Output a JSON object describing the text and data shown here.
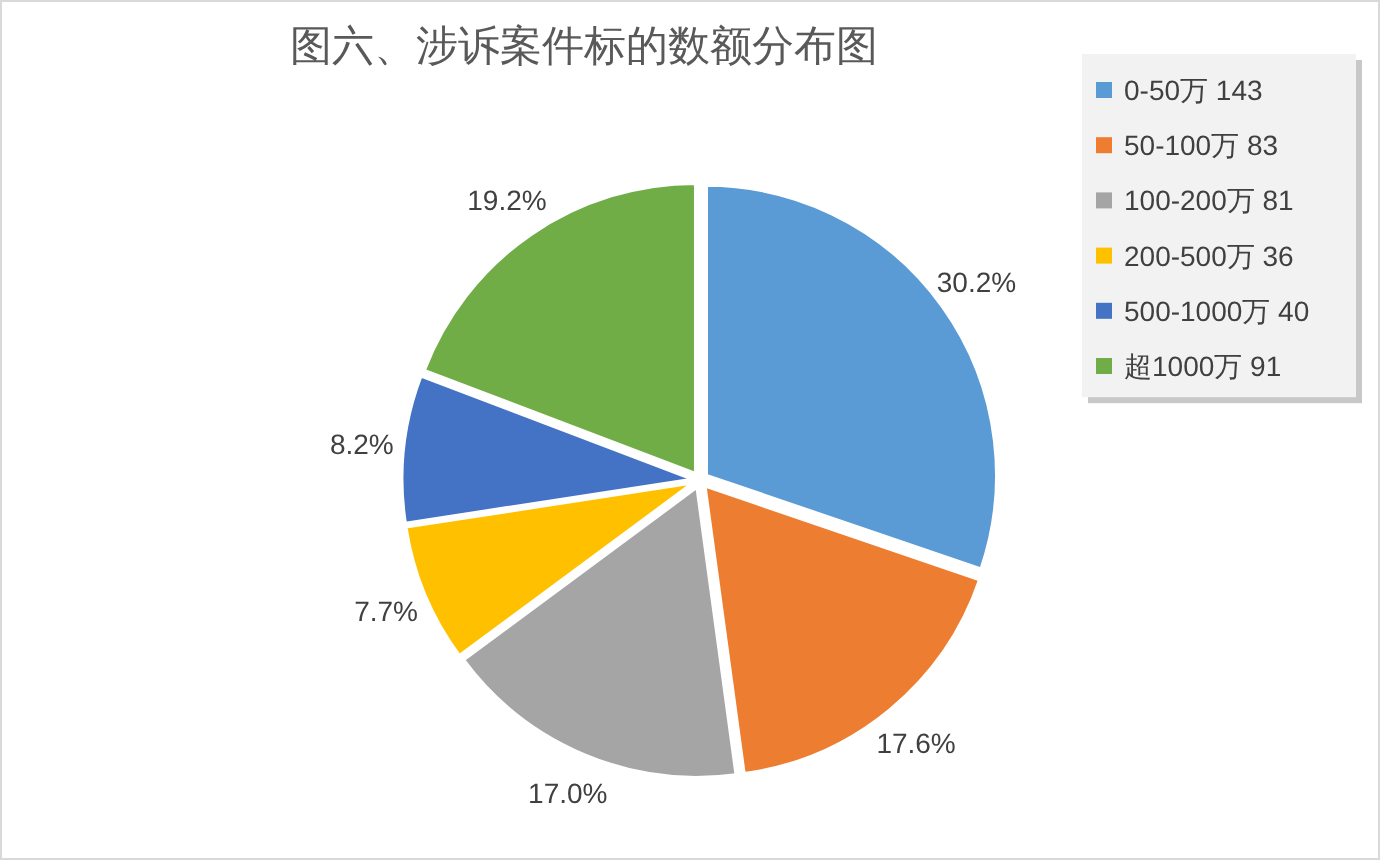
{
  "chart_data": {
    "type": "pie",
    "title": "图六、涉诉案件标的数额分布图",
    "categories": [
      "0-50万 143",
      "50-100万 83",
      "100-200万 81",
      "200-500万 36",
      "500-1000万 40",
      "超1000万 91"
    ],
    "values": [
      30.2,
      17.6,
      17.0,
      7.7,
      8.2,
      19.2
    ],
    "colors": [
      "#5b9bd5",
      "#ed7d31",
      "#a5a5a5",
      "#ffc000",
      "#4472c4",
      "#70ad47"
    ],
    "value_labels": [
      "30.2%",
      "17.6%",
      "17.0%",
      "7.7%",
      "8.2%",
      "19.2%"
    ],
    "legend": "top right"
  }
}
